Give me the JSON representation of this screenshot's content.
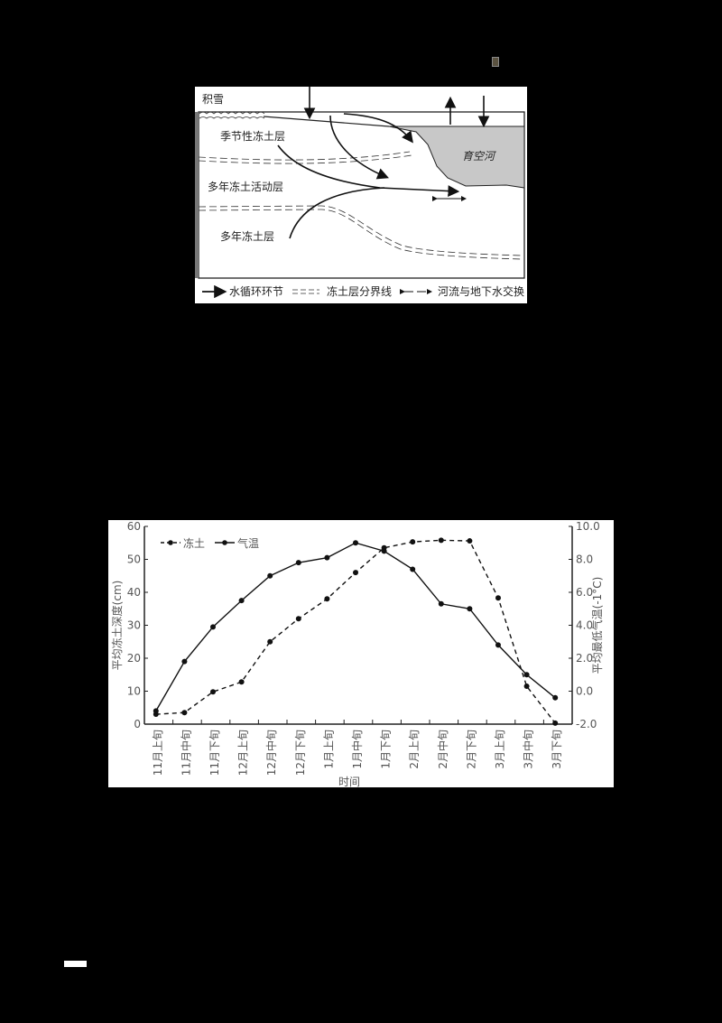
{
  "diagram": {
    "labels": {
      "snow": "积雪",
      "seasonal_frozen_layer": "季节性冻土层",
      "active_layer": "多年冻土活动层",
      "permafrost_layer": "多年冻土层",
      "river": "育空河"
    },
    "legend": {
      "water_cycle": "水循环环节",
      "frozen_boundary": "冻土层分界线",
      "river_groundwater_exchange": "河流与地下水交换"
    }
  },
  "chart_data": {
    "type": "line",
    "title": "",
    "xlabel": "时间",
    "ylabel": "平均冻土深度(cm)",
    "y2label": "平均最低气温(-1°C)",
    "ylim": [
      0,
      60
    ],
    "y2lim": [
      -2.0,
      10.0
    ],
    "yticks": [
      "0",
      "10",
      "20",
      "30",
      "40",
      "50",
      "60"
    ],
    "y2ticks": [
      "-2.0",
      "0.0",
      "2.0",
      "4.0",
      "6.0",
      "8.0",
      "10.0"
    ],
    "grid": false,
    "legend_position": "top-left",
    "categories": [
      "11月上旬",
      "11月中旬",
      "11月下旬",
      "12月上旬",
      "12月中旬",
      "12月下旬",
      "1月上旬",
      "1月中旬",
      "1月下旬",
      "2月上旬",
      "2月中旬",
      "2月下旬",
      "3月上旬",
      "3月中旬",
      "3月下旬"
    ],
    "series": [
      {
        "name": "冻土",
        "style": "dashed",
        "axis": "left",
        "values": [
          3.0,
          3.5,
          9.8,
          12.8,
          25.0,
          32.0,
          38.0,
          46.0,
          53.5,
          55.3,
          55.8,
          55.6,
          38.3,
          11.5,
          0.3
        ]
      },
      {
        "name": "气温",
        "style": "solid",
        "axis": "right",
        "values": [
          -1.2,
          1.8,
          3.9,
          5.5,
          7.0,
          7.8,
          8.1,
          9.0,
          8.5,
          7.4,
          5.3,
          5.0,
          2.8,
          1.0,
          -0.4
        ]
      }
    ]
  }
}
